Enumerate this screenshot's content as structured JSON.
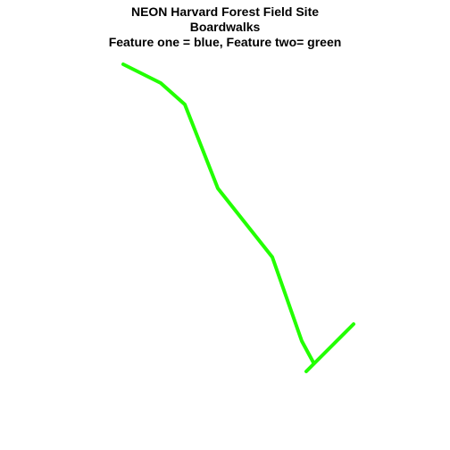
{
  "plot": {
    "title_lines": [
      "NEON Harvard Forest Field Site",
      "Boardwalks",
      "Feature one = blue, Feature two= green"
    ]
  },
  "features": [
    {
      "name": "feature-two",
      "color": "#22ff00",
      "line_width": 4
    }
  ]
}
